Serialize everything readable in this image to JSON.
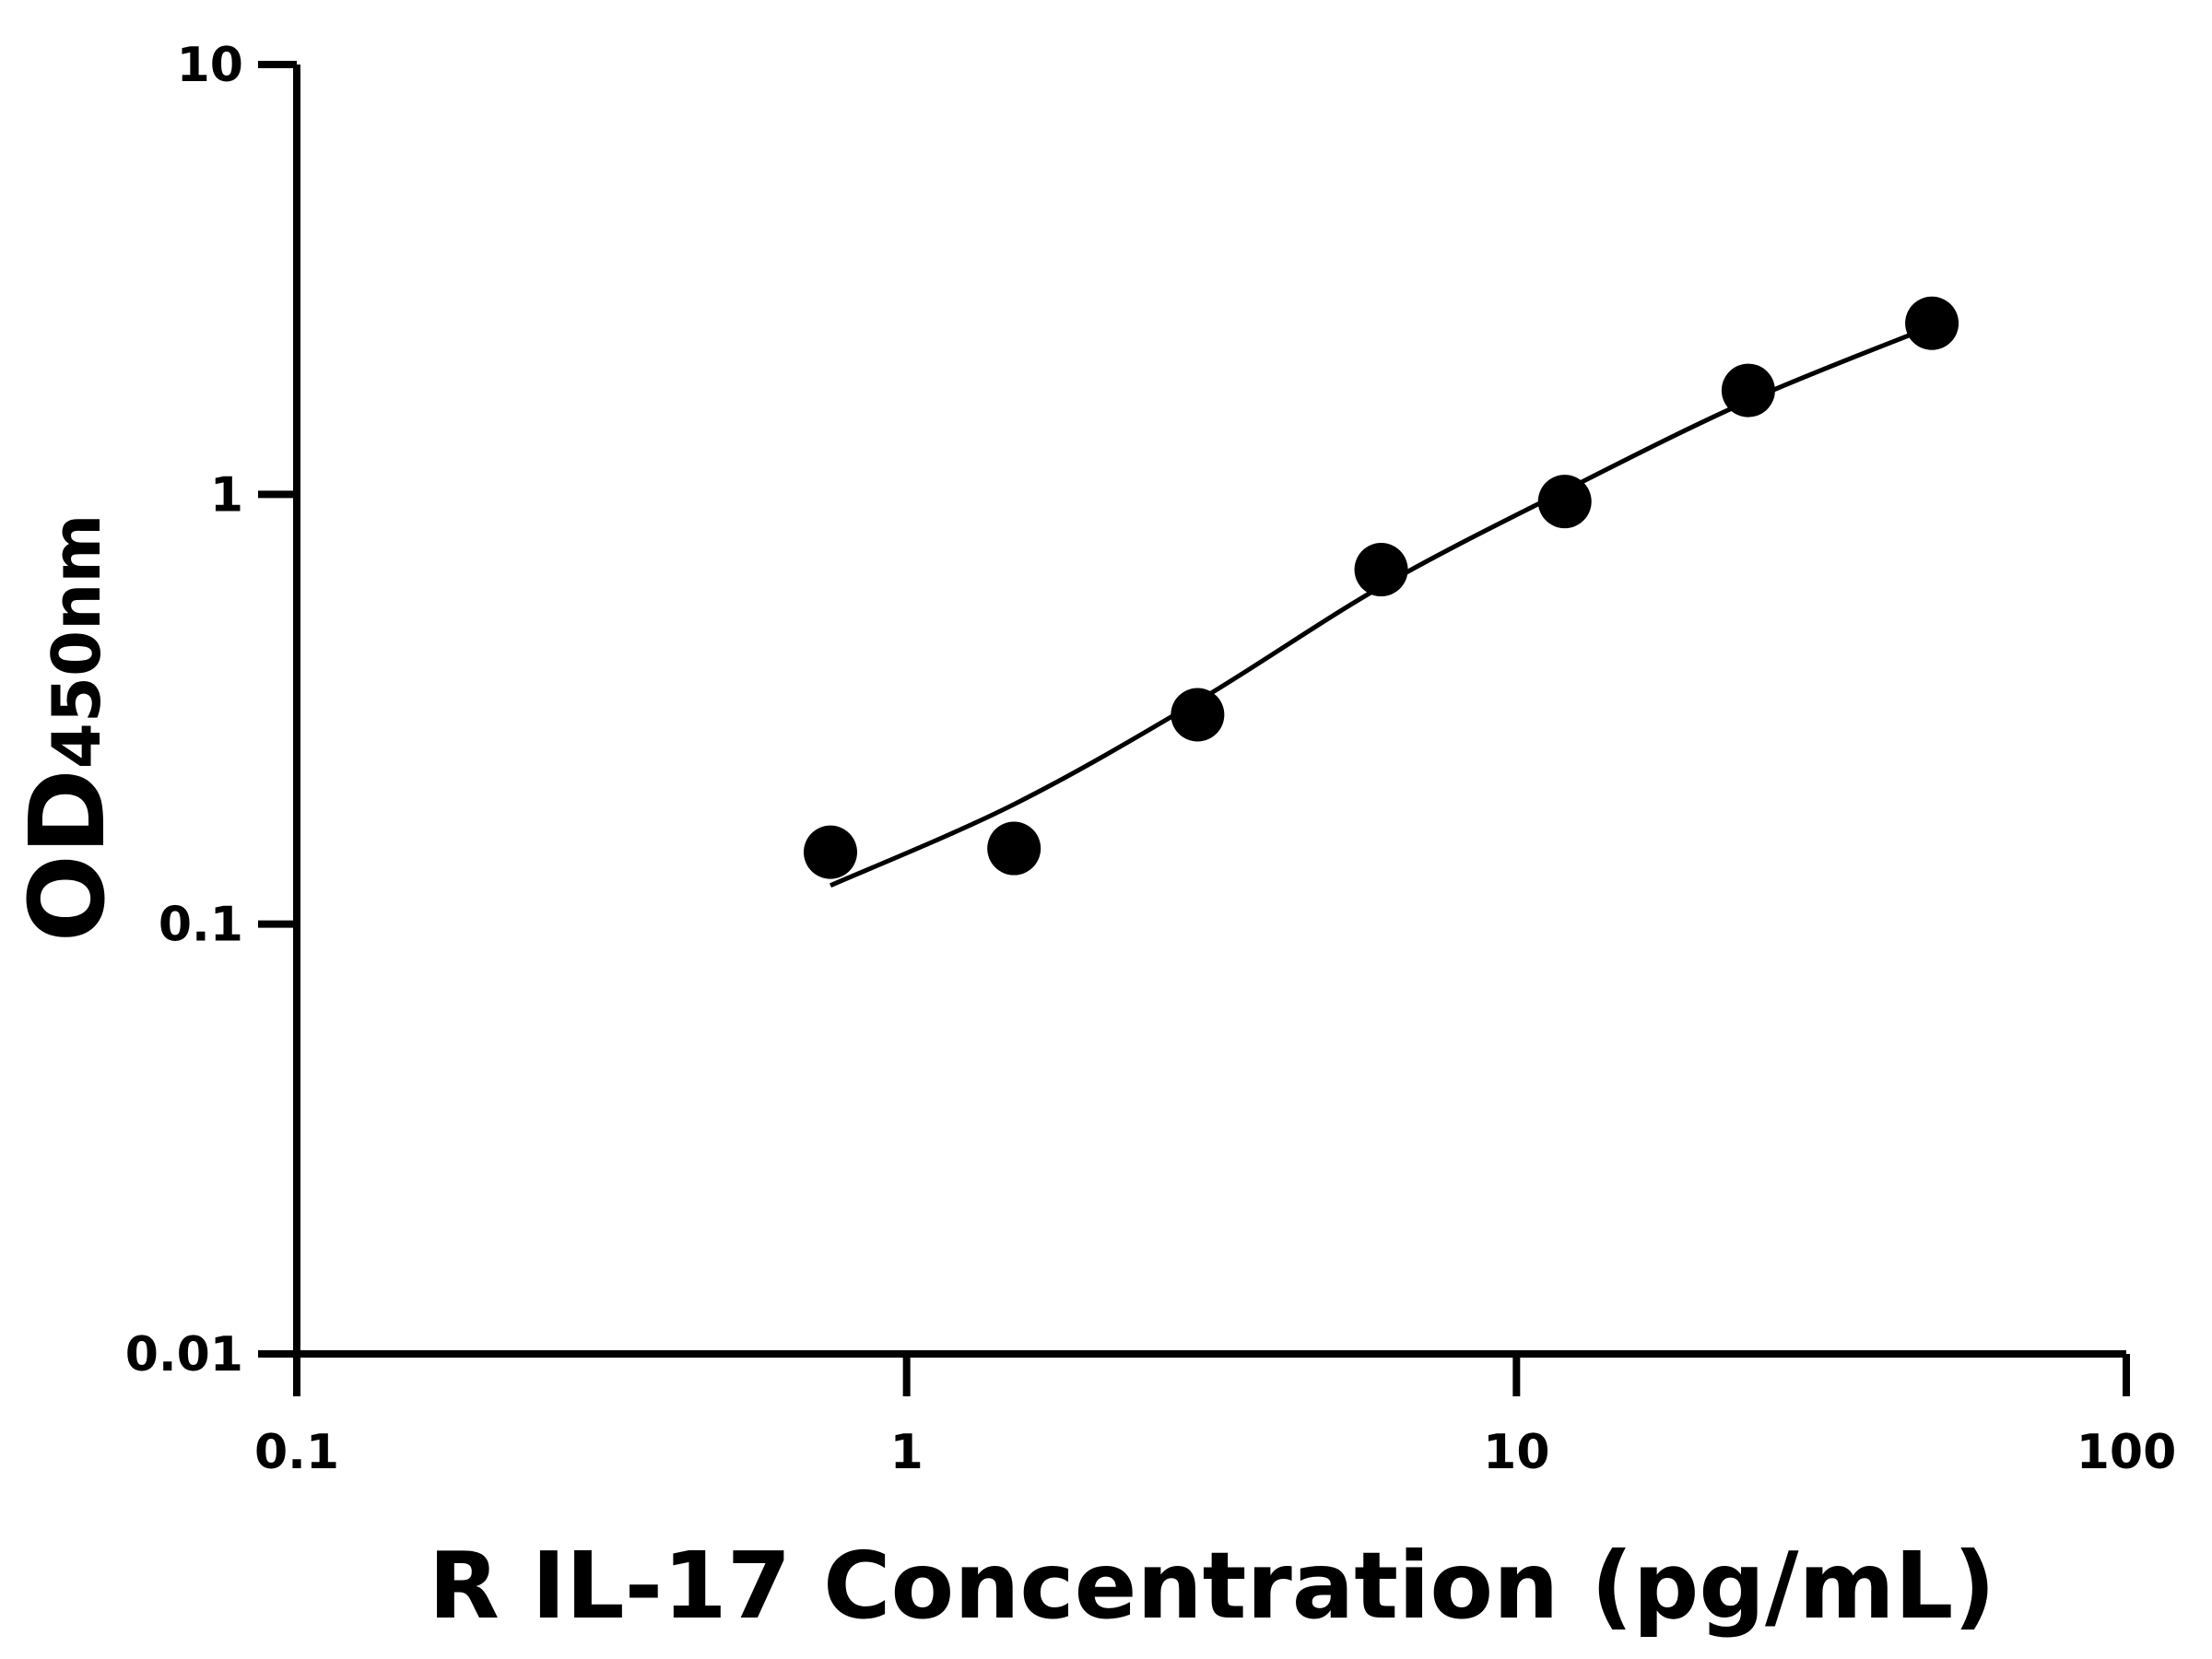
{
  "chart_data": {
    "type": "scatter",
    "x_label": "R IL-17 Concentration (pg/mL)",
    "y_label": "OD",
    "y_label_subscript": "450nm",
    "x": [
      0.75,
      1.5,
      3,
      6,
      12,
      24,
      48
    ],
    "values": [
      0.147,
      0.15,
      0.307,
      0.668,
      0.962,
      1.745,
      2.5
    ],
    "color": "#000000",
    "fit": {
      "x": [
        0.75,
        1.5,
        3,
        6,
        12,
        24,
        48
      ],
      "values": [
        0.123,
        0.19,
        0.33,
        0.61,
        1.02,
        1.65,
        2.46
      ]
    },
    "xlog": true,
    "ylog": true,
    "xlim": [
      0.1,
      100
    ],
    "ylim": [
      0.01,
      10
    ],
    "xticks": [
      0.1,
      1,
      10,
      100
    ],
    "yticks": [
      0.01,
      0.1,
      1,
      10
    ]
  }
}
